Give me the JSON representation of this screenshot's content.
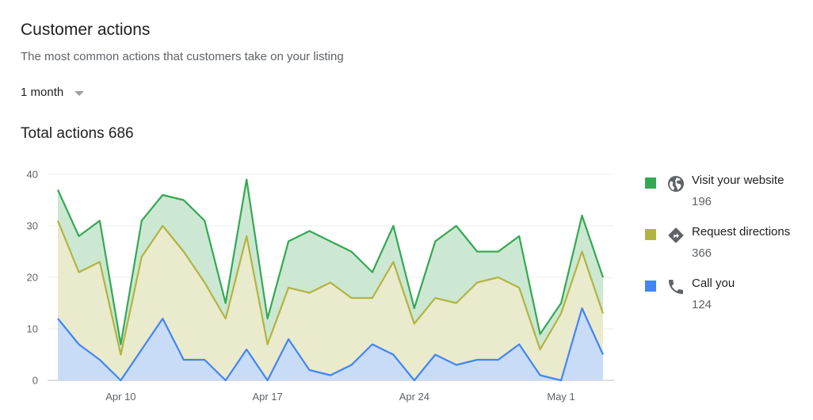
{
  "header": {
    "title": "Customer actions",
    "subtitle": "The most common actions that customers take on your listing",
    "range_label": "1 month",
    "total_label": "Total actions 686"
  },
  "legend": [
    {
      "label": "Visit your website",
      "value": "196",
      "color": "#34a853",
      "icon": "globe-icon"
    },
    {
      "label": "Request directions",
      "value": "366",
      "color": "#b3b341",
      "icon": "directions-icon"
    },
    {
      "label": "Call you",
      "value": "124",
      "color": "#4285f4",
      "icon": "phone-icon"
    }
  ],
  "chart_data": {
    "type": "area",
    "stacked": true,
    "title": "",
    "xlabel": "",
    "ylabel": "",
    "ylim": [
      0,
      40
    ],
    "yticks": [
      0,
      10,
      20,
      30,
      40
    ],
    "xtick_labels": [
      {
        "index": 3,
        "label": "Apr 10"
      },
      {
        "index": 10,
        "label": "Apr 17"
      },
      {
        "index": 17,
        "label": "Apr 24"
      },
      {
        "index": 24,
        "label": "May 1"
      }
    ],
    "grid": true,
    "legend_position": "right",
    "x": [
      "Apr 7",
      "Apr 8",
      "Apr 9",
      "Apr 10",
      "Apr 11",
      "Apr 12",
      "Apr 13",
      "Apr 14",
      "Apr 15",
      "Apr 16",
      "Apr 17",
      "Apr 18",
      "Apr 19",
      "Apr 20",
      "Apr 21",
      "Apr 22",
      "Apr 23",
      "Apr 24",
      "Apr 25",
      "Apr 26",
      "Apr 27",
      "Apr 28",
      "Apr 29",
      "Apr 30",
      "May 1",
      "May 2",
      "May 3"
    ],
    "series": [
      {
        "name": "Call you",
        "color": "#4285f4",
        "fill": "#c9dcf7",
        "values": [
          12,
          7,
          4,
          0,
          6,
          12,
          4,
          4,
          0,
          6,
          0,
          8,
          2,
          1,
          3,
          7,
          5,
          0,
          5,
          3,
          4,
          4,
          7,
          1,
          0,
          14,
          5
        ]
      },
      {
        "name": "Request directions",
        "color": "#b3b341",
        "fill": "#eaeacc",
        "values": [
          19,
          14,
          19,
          5,
          18,
          18,
          21,
          15,
          12,
          22,
          7,
          10,
          15,
          18,
          13,
          9,
          18,
          11,
          11,
          12,
          15,
          16,
          11,
          5,
          13,
          11,
          8
        ]
      },
      {
        "name": "Visit your website",
        "color": "#34a853",
        "fill": "#cce8d2",
        "values": [
          6,
          7,
          8,
          2,
          7,
          6,
          10,
          12,
          3,
          11,
          5,
          9,
          12,
          8,
          9,
          5,
          7,
          3,
          11,
          15,
          6,
          5,
          10,
          3,
          2,
          7,
          7
        ]
      }
    ]
  }
}
